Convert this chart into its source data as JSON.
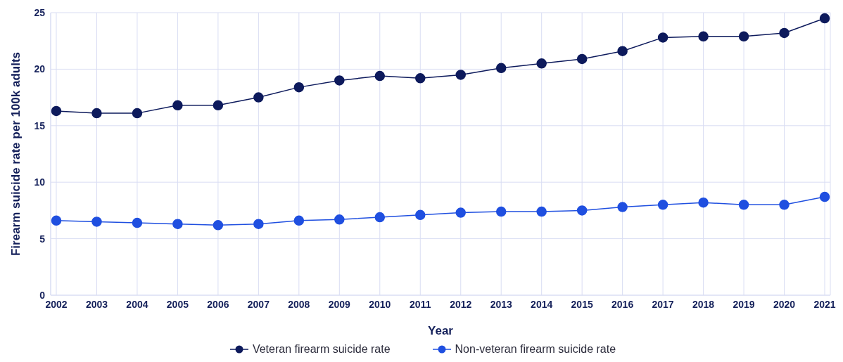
{
  "chart_data": {
    "type": "line",
    "xlabel": "Year",
    "ylabel": "Firearm suicide rate per 100k adults",
    "categories": [
      "2002",
      "2003",
      "2004",
      "2005",
      "2006",
      "2007",
      "2008",
      "2009",
      "2010",
      "2011",
      "2012",
      "2013",
      "2014",
      "2015",
      "2016",
      "2017",
      "2018",
      "2019",
      "2020",
      "2021"
    ],
    "series": [
      {
        "name": "Veteran firearm suicide rate",
        "color": "#0d1a5c",
        "values": [
          16.3,
          16.1,
          16.1,
          16.8,
          16.8,
          17.5,
          18.4,
          19.0,
          19.4,
          19.2,
          19.5,
          20.1,
          20.5,
          20.9,
          21.6,
          22.8,
          22.9,
          22.9,
          23.2,
          24.5
        ]
      },
      {
        "name": "Non-veteran firearm suicide rate",
        "color": "#1f4fe0",
        "values": [
          6.6,
          6.5,
          6.4,
          6.3,
          6.2,
          6.3,
          6.6,
          6.7,
          6.9,
          7.1,
          7.3,
          7.4,
          7.4,
          7.5,
          7.8,
          8.0,
          8.2,
          8.0,
          8.0,
          8.7
        ]
      }
    ],
    "ylim": [
      0,
      25
    ],
    "yticks": [
      0,
      5,
      10,
      15,
      20,
      25
    ],
    "grid": true,
    "legend": "bottom",
    "marker": "circle",
    "line_style": "solid"
  }
}
